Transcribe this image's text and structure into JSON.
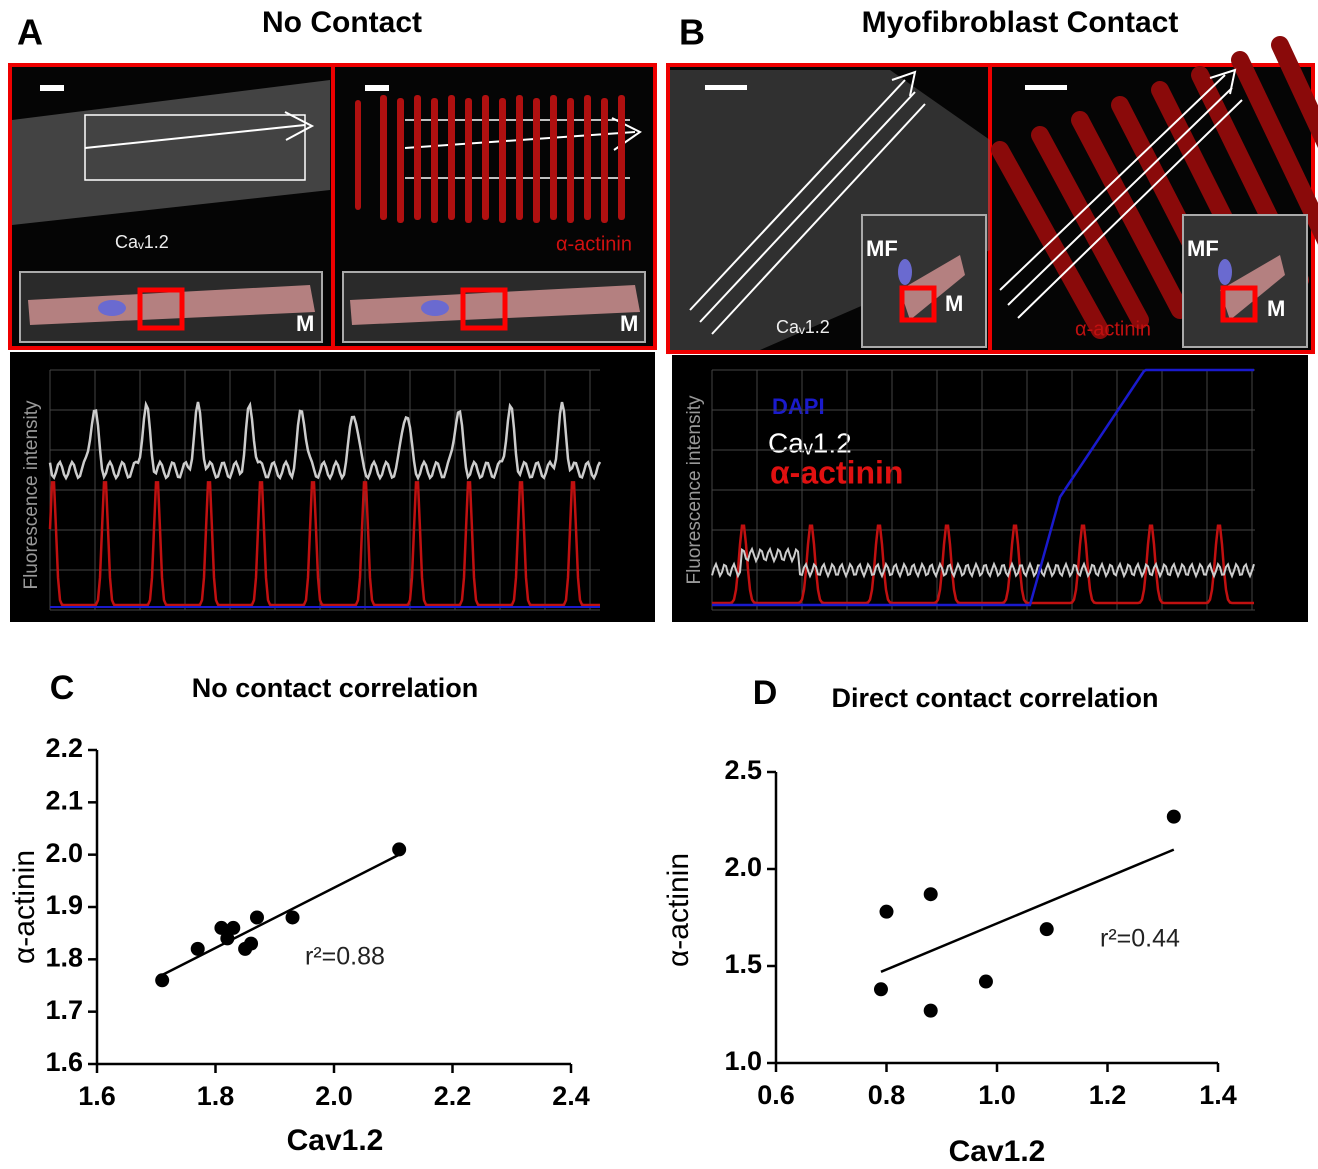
{
  "panels": [
    {
      "letter": "A",
      "title": "No Contact",
      "image_labels": [
        "Caᵥ1.2",
        "α-actinin",
        "M",
        "M"
      ],
      "y_label": "Fluorescence intensity"
    },
    {
      "letter": "B",
      "title": "Myofibroblast Contact",
      "image_labels": [
        "Caᵥ1.2",
        "α-actinin",
        "MF",
        "M",
        "MF",
        "M"
      ],
      "y_label": "Fluorescence intensity",
      "legend": [
        "DAPI",
        "Caᵥ1.2",
        "α-actinin"
      ]
    }
  ],
  "chart_data": [
    {
      "type": "scatter",
      "letter": "C",
      "title": "No contact correlation",
      "x_label": "Cav1.2",
      "y_label": "α-actinin",
      "annotation": "r²=0.88",
      "color": "#000000",
      "x": [
        1.71,
        1.77,
        1.81,
        1.83,
        1.82,
        1.85,
        1.86,
        1.87,
        1.93,
        2.11
      ],
      "values": [
        1.76,
        1.82,
        1.86,
        1.86,
        1.84,
        1.82,
        1.83,
        1.88,
        1.88,
        2.01
      ],
      "fit_line": {
        "x": [
          1.71,
          2.11
        ],
        "y": [
          1.77,
          2.0
        ]
      },
      "xlim": [
        1.6,
        2.4
      ],
      "ylim": [
        1.6,
        2.2
      ],
      "xticks": [
        1.6,
        1.8,
        {
          "value": 2,
          "label": "2.0"
        },
        2.2,
        2.4
      ],
      "yticks": [
        1.6,
        1.7,
        1.8,
        1.9,
        {
          "value": 2,
          "label": "2.0"
        },
        2.1,
        2.2
      ]
    },
    {
      "type": "scatter",
      "letter": "D",
      "title": "Direct contact correlation",
      "x_label": "Cav1.2",
      "y_label": "α-actinin",
      "annotation": "r²=0.44",
      "color": "#000000",
      "x": [
        0.79,
        0.8,
        0.88,
        0.88,
        0.98,
        1.09,
        1.32
      ],
      "values": [
        1.38,
        1.78,
        1.87,
        1.27,
        1.42,
        1.69,
        2.27
      ],
      "fit_line": {
        "x": [
          0.79,
          1.32
        ],
        "y": [
          1.47,
          2.1
        ]
      },
      "xlim": [
        0.6,
        1.4
      ],
      "ylim": [
        1,
        2.5
      ],
      "xticks": [
        0.6,
        0.8,
        {
          "value": 1,
          "label": "1.0"
        },
        1.2,
        1.4
      ],
      "yticks": [
        {
          "value": 1,
          "label": "1.0"
        },
        1.5,
        {
          "value": 2,
          "label": "2.0"
        },
        2.5
      ]
    }
  ]
}
